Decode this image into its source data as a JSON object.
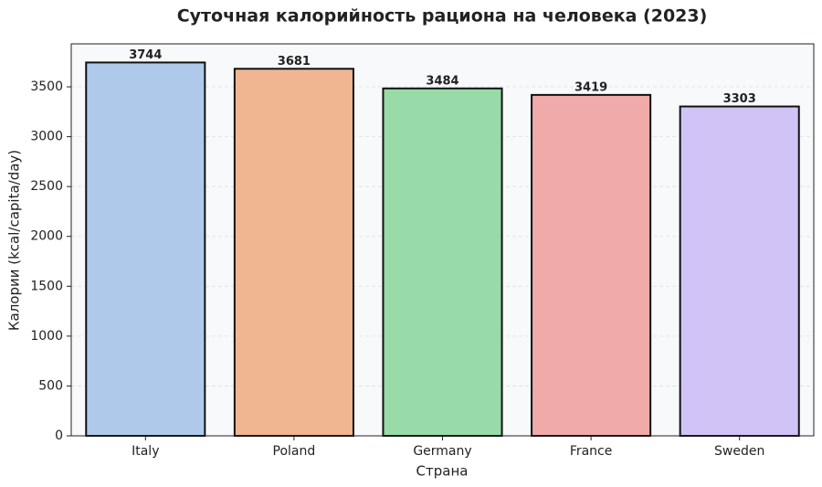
{
  "chart_data": {
    "type": "bar",
    "title": "Суточная калорийность рациона на человека (2023)",
    "x_label": "Страна",
    "y_label": "Калории (kcal/capita/day)",
    "categories": [
      "Italy",
      "Poland",
      "Germany",
      "France",
      "Sweden"
    ],
    "values": [
      3744,
      3681,
      3484,
      3419,
      3303
    ],
    "colors": [
      "#aec9ea",
      "#f0b692",
      "#98dba8",
      "#f1aaaa",
      "#d1c3f6"
    ],
    "ylim": [
      0,
      3931
    ],
    "yticks": [
      0,
      500,
      1000,
      1500,
      2000,
      2500,
      3000,
      3500
    ],
    "grid": true
  }
}
